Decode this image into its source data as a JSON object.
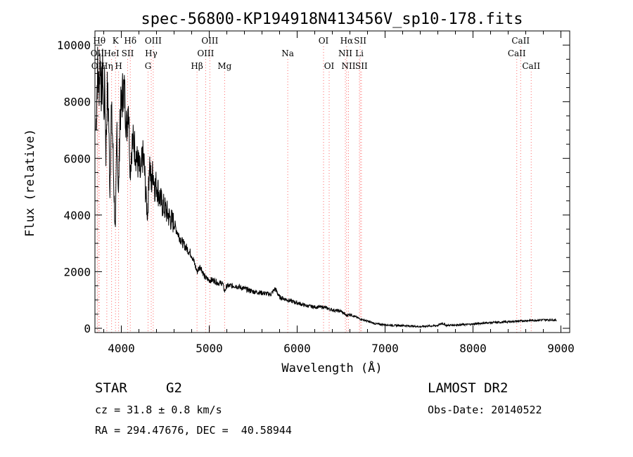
{
  "chart_data": {
    "type": "line",
    "title": "spec-56800-KP194918N413456V_sp10-178.fits",
    "xlabel": "Wavelength (Å)",
    "ylabel": "Flux (relative)",
    "xlim": [
      3700,
      9100
    ],
    "ylim": [
      -150,
      10500
    ],
    "xticks": [
      4000,
      5000,
      6000,
      7000,
      8000,
      9000
    ],
    "yticks": [
      0,
      2000,
      4000,
      6000,
      8000,
      10000
    ],
    "grid": false,
    "legend": "none",
    "line_color": "#000000",
    "marker_color": "#ff6a6a",
    "series": [
      {
        "x": [
          3710,
          3730,
          3745,
          3760,
          3775,
          3790,
          3800,
          3812,
          3825,
          3840,
          3855,
          3870,
          3885,
          3900,
          3915,
          3933,
          3950,
          3968,
          3985,
          4000,
          4020,
          4040,
          4060,
          4080,
          4101,
          4120,
          4140,
          4160,
          4180,
          4200,
          4220,
          4240,
          4260,
          4280,
          4300,
          4320,
          4340,
          4360,
          4380,
          4400,
          4430,
          4460,
          4500,
          4550,
          4600,
          4650,
          4700,
          4750,
          4800,
          4861,
          4900,
          4950,
          5000,
          5050,
          5100,
          5150,
          5175,
          5200,
          5250,
          5300,
          5400,
          5500,
          5600,
          5700,
          5750,
          5800,
          5890,
          6000,
          6100,
          6200,
          6300,
          6400,
          6500,
          6563,
          6600,
          6700,
          6800,
          6900,
          7000,
          7100,
          7200,
          7300,
          7400,
          7500,
          7600,
          7650,
          7700,
          7800,
          7900,
          8000,
          8100,
          8200,
          8300,
          8400,
          8500,
          8600,
          8700,
          8800,
          8900,
          8950
        ],
        "y": [
          7000,
          9200,
          8400,
          9600,
          8200,
          9200,
          7400,
          8700,
          6200,
          8300,
          7600,
          4900,
          7600,
          6800,
          5000,
          3300,
          7200,
          4600,
          7600,
          7800,
          8500,
          8200,
          7000,
          8100,
          5600,
          6500,
          6600,
          6300,
          5900,
          5700,
          5300,
          6100,
          5800,
          4600,
          4000,
          6000,
          5000,
          5600,
          5000,
          5100,
          4700,
          4400,
          4200,
          3900,
          3700,
          3300,
          3000,
          2800,
          2600,
          2000,
          2200,
          1800,
          1700,
          1700,
          1600,
          1600,
          1300,
          1500,
          1500,
          1500,
          1400,
          1300,
          1250,
          1200,
          1400,
          1100,
          1000,
          900,
          800,
          750,
          750,
          650,
          600,
          450,
          500,
          350,
          250,
          150,
          130,
          100,
          100,
          80,
          60,
          80,
          100,
          180,
          100,
          120,
          130,
          150,
          180,
          200,
          210,
          230,
          250,
          270,
          280,
          300,
          300,
          280
        ]
      }
    ],
    "markers": [
      {
        "label": "Hθ",
        "x": 3750,
        "row": 0
      },
      {
        "label": "OII",
        "x": 3727,
        "row": 1
      },
      {
        "label": "OII",
        "x": 3735,
        "row": 2
      },
      {
        "label": "Hη",
        "x": 3835,
        "row": 2
      },
      {
        "label": "HeI",
        "x": 3889,
        "row": 1
      },
      {
        "label": "K",
        "x": 3934,
        "row": 0
      },
      {
        "label": "H",
        "x": 3969,
        "row": 2
      },
      {
        "label": "SII",
        "x": 4072,
        "row": 1
      },
      {
        "label": "Hδ",
        "x": 4102,
        "row": 0
      },
      {
        "label": "OIII",
        "x": 4363,
        "row": 0
      },
      {
        "label": "Hγ",
        "x": 4340,
        "row": 1
      },
      {
        "label": "G",
        "x": 4304,
        "row": 2
      },
      {
        "label": "Hβ",
        "x": 4861,
        "row": 2
      },
      {
        "label": "OIII",
        "x": 5007,
        "row": 0
      },
      {
        "label": "OIII",
        "x": 4959,
        "row": 1
      },
      {
        "label": "Mg",
        "x": 5175,
        "row": 2
      },
      {
        "label": "Na",
        "x": 5893,
        "row": 1
      },
      {
        "label": "OI",
        "x": 6300,
        "row": 0
      },
      {
        "label": "OI",
        "x": 6364,
        "row": 2
      },
      {
        "label": "Hα",
        "x": 6563,
        "row": 0
      },
      {
        "label": "NII",
        "x": 6548,
        "row": 1
      },
      {
        "label": "NII",
        "x": 6584,
        "row": 2
      },
      {
        "label": "SII",
        "x": 6717,
        "row": 0
      },
      {
        "label": "Li",
        "x": 6708,
        "row": 1
      },
      {
        "label": "SII",
        "x": 6731,
        "row": 2
      },
      {
        "label": "CaII",
        "x": 8542,
        "row": 0
      },
      {
        "label": "CaII",
        "x": 8498,
        "row": 1
      },
      {
        "label": "CaII",
        "x": 8662,
        "row": 2
      }
    ]
  },
  "info": {
    "object_class": "STAR",
    "subclass": "G2",
    "survey": "LAMOST DR2",
    "redshift": "cz = 31.8 ± 0.8 km/s",
    "obs_date": "Obs-Date: 20140522",
    "coords": "RA = 294.47676, DEC =  40.58944"
  }
}
